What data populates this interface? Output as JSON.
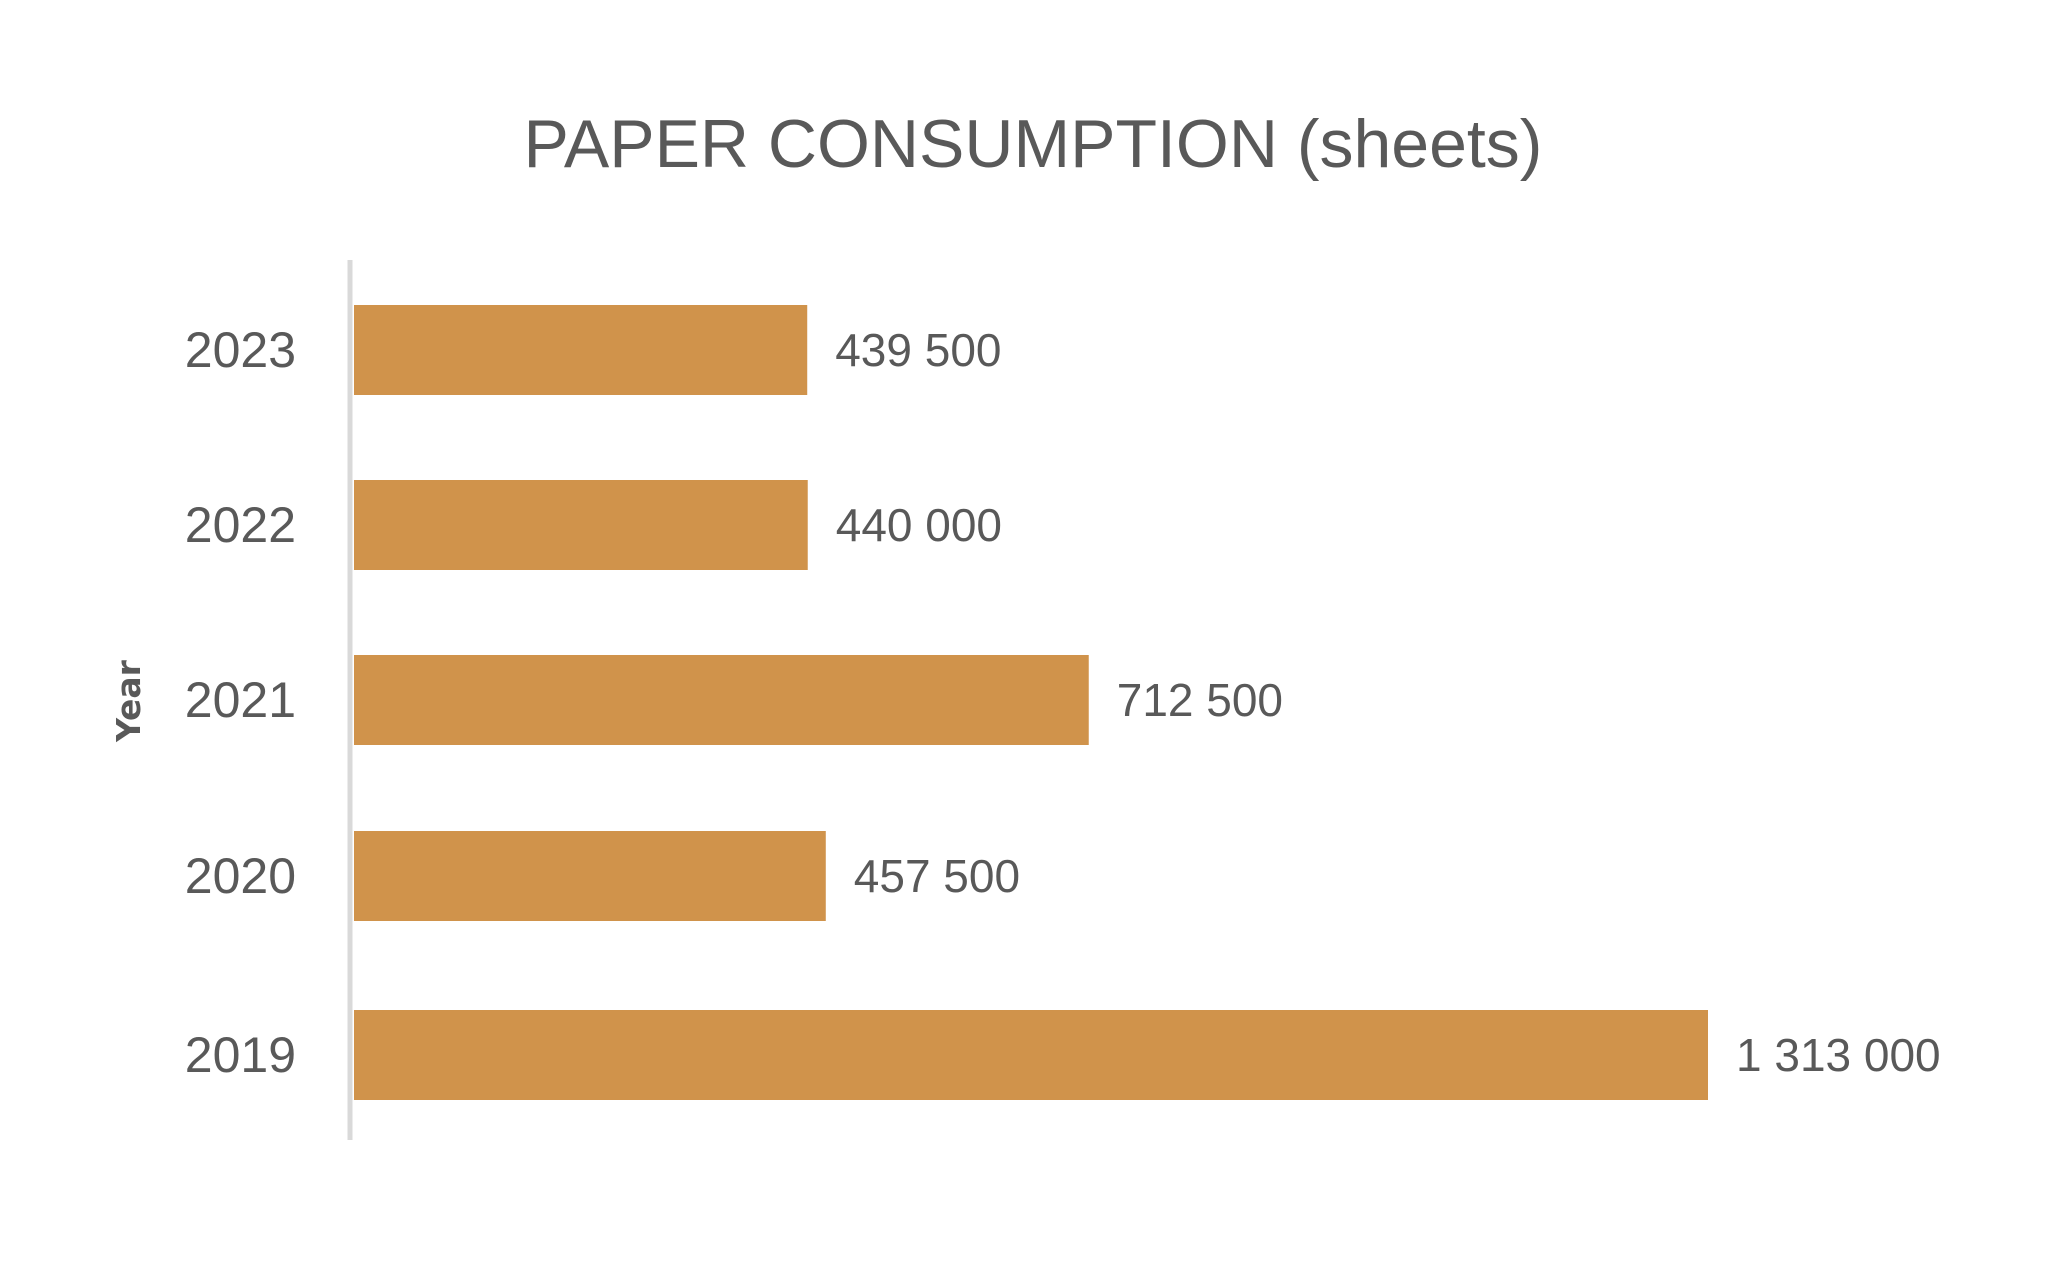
{
  "chart_data": {
    "type": "bar",
    "orientation": "horizontal",
    "title": "PAPER CONSUMPTION (sheets)",
    "xlabel": "",
    "ylabel": "Year",
    "categories": [
      "2023",
      "2022",
      "2021",
      "2020",
      "2019"
    ],
    "values": [
      439500,
      440000,
      712500,
      457500,
      1313000
    ],
    "data_labels": [
      "439 500",
      "440 000",
      "712 500",
      "457 500",
      "1 313 000"
    ],
    "xlim": [
      0,
      1313000
    ],
    "grid": false,
    "legend": "none",
    "colors": {
      "bar": "#D0934B",
      "axis_line": "#D9D9D9",
      "text": "#595959"
    }
  }
}
